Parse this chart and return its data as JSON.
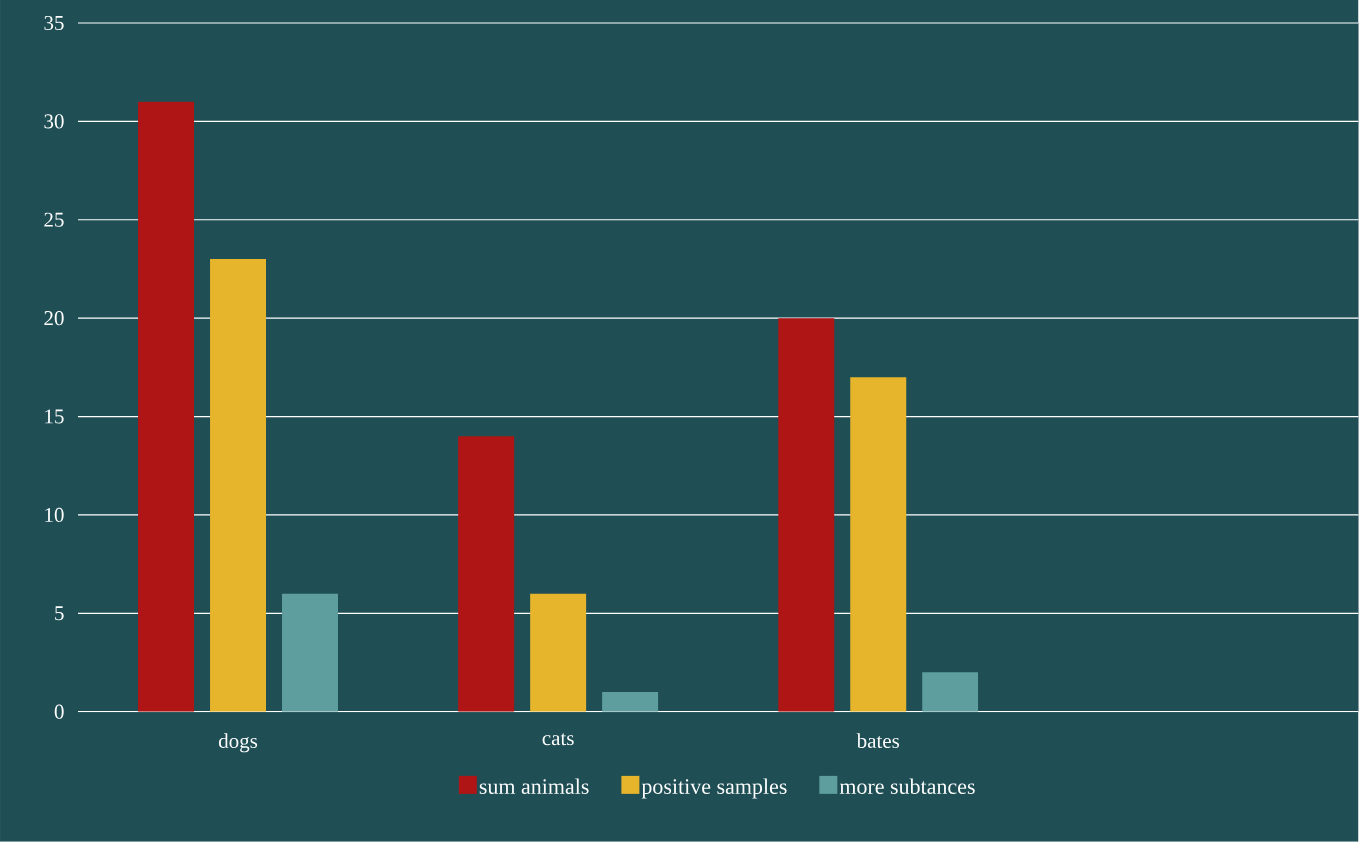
{
  "chart_data": {
    "type": "bar",
    "categories": [
      "dogs",
      "cats",
      "bates",
      null
    ],
    "series": [
      {
        "name": "sum animals",
        "color": "#b01515",
        "values": [
          31,
          14,
          20,
          null
        ]
      },
      {
        "name": "positive samples",
        "color": "#e6b52b",
        "values": [
          23,
          6,
          17,
          null
        ]
      },
      {
        "name": "more subtances",
        "color": "#5e9e9e",
        "values": [
          6,
          1,
          2,
          null
        ]
      }
    ],
    "ylim": [
      0,
      35
    ],
    "yticks": [
      0,
      5,
      10,
      15,
      20,
      25,
      30,
      35
    ],
    "grid": "y",
    "legend": "bottom"
  }
}
